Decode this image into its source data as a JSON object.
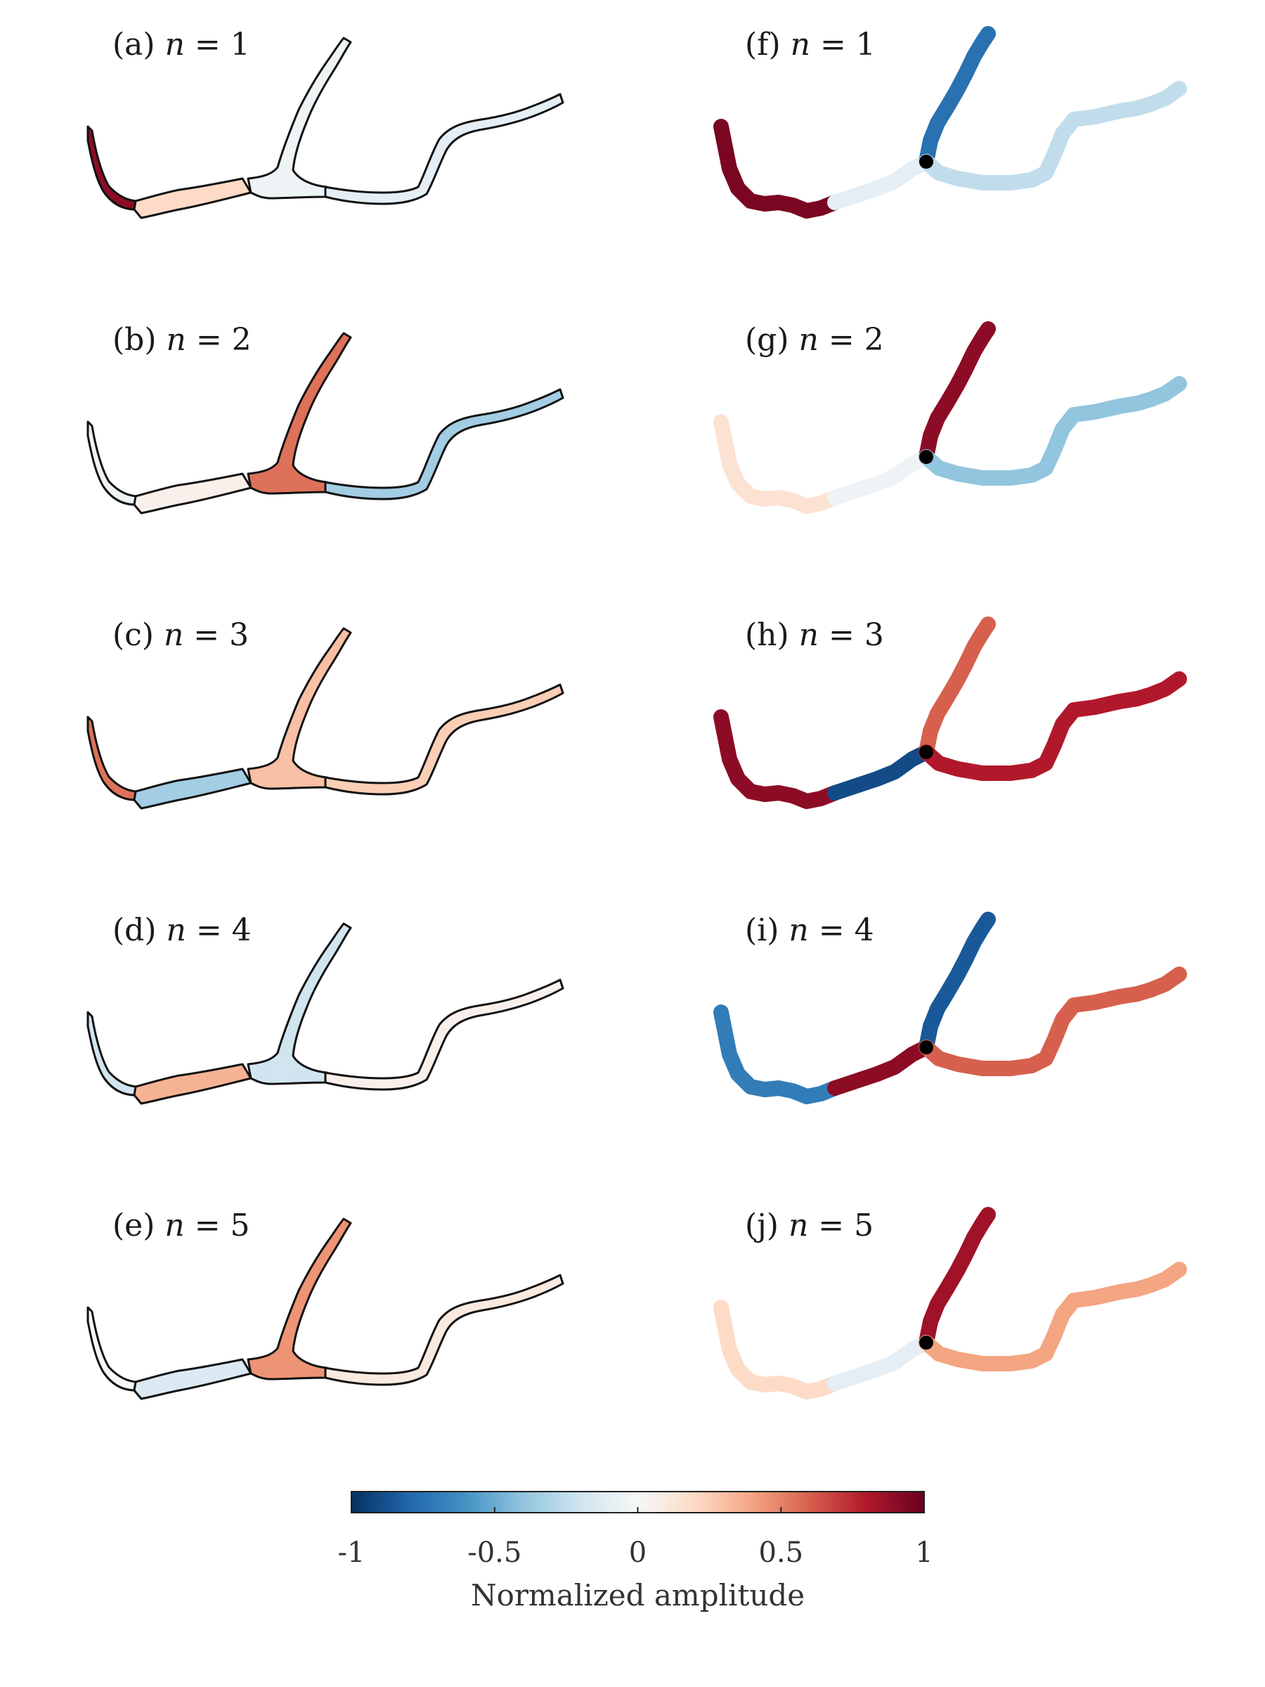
{
  "colors": {
    "min": "#053061",
    "mid": "#f7f7f7",
    "max": "#67001f",
    "outline": "#111111",
    "node": "#000000"
  },
  "colormap_stops": [
    "#053061",
    "#2166ac",
    "#4393c3",
    "#92c5de",
    "#d1e5f0",
    "#f7f7f7",
    "#fddbc7",
    "#f4a582",
    "#d6604d",
    "#b2182b",
    "#67001f"
  ],
  "modes": [
    {
      "lake": {
        "label": "(a)",
        "var": "n",
        "eq": " = ",
        "value": "1",
        "amp": {
          "west": 0.9,
          "channel": 0.2,
          "upper_arm": -0.05,
          "right_arm": -0.1
        }
      },
      "graph": {
        "label": "(f)",
        "var": "n",
        "eq": " = ",
        "value": "1",
        "amp": {
          "west": 0.95,
          "junction": -0.1,
          "north": -0.75,
          "east": -0.25
        }
      }
    },
    {
      "lake": {
        "label": "(b)",
        "var": "n",
        "eq": " = ",
        "value": "2",
        "amp": {
          "west": -0.05,
          "channel": 0.05,
          "upper_arm": 0.55,
          "right_arm": -0.35
        }
      },
      "graph": {
        "label": "(g)",
        "var": "n",
        "eq": " = ",
        "value": "2",
        "amp": {
          "west": 0.15,
          "junction": -0.05,
          "north": 0.9,
          "east": -0.4
        }
      }
    },
    {
      "lake": {
        "label": "(c)",
        "var": "n",
        "eq": " = ",
        "value": "3",
        "amp": {
          "west": 0.55,
          "channel": -0.35,
          "upper_arm": 0.3,
          "right_arm": 0.25
        }
      },
      "graph": {
        "label": "(h)",
        "var": "n",
        "eq": " = ",
        "value": "3",
        "amp": {
          "west": 0.9,
          "junction": -0.9,
          "north": 0.6,
          "east": 0.8
        }
      }
    },
    {
      "lake": {
        "label": "(d)",
        "var": "n",
        "eq": " = ",
        "value": "4",
        "amp": {
          "west": -0.2,
          "channel": 0.35,
          "upper_arm": -0.2,
          "right_arm": 0.05
        }
      },
      "graph": {
        "label": "(i)",
        "var": "n",
        "eq": " = ",
        "value": "4",
        "amp": {
          "west": -0.7,
          "junction": 0.9,
          "north": -0.85,
          "east": 0.6
        }
      }
    },
    {
      "lake": {
        "label": "(e)",
        "var": "n",
        "eq": " = ",
        "value": "5",
        "amp": {
          "west": 0.0,
          "channel": -0.15,
          "upper_arm": 0.45,
          "right_arm": 0.1
        }
      },
      "graph": {
        "label": "(j)",
        "var": "n",
        "eq": " = ",
        "value": "5",
        "amp": {
          "west": 0.2,
          "junction": -0.1,
          "north": 0.85,
          "east": 0.4
        }
      }
    }
  ],
  "colorbar": {
    "range": [
      -1,
      1
    ],
    "ticks": [
      "-1",
      "-0.5",
      "0",
      "0.5",
      "1"
    ],
    "title": "Normalized amplitude"
  }
}
